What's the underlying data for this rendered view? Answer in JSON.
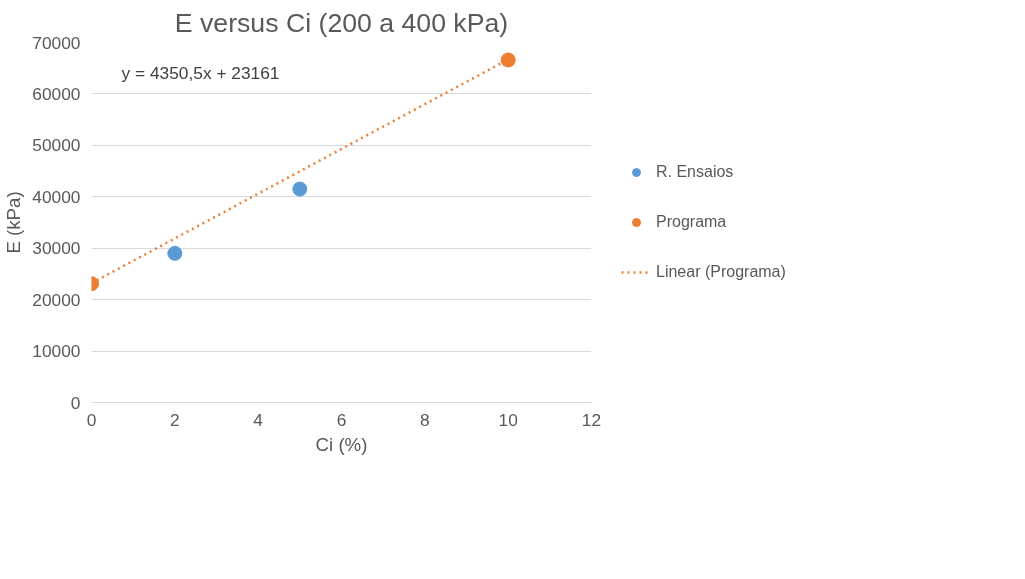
{
  "chart_data": {
    "type": "scatter",
    "title": "E versus Ci (200 a 400 kPa)",
    "xlabel": "Ci (%)",
    "ylabel": "E (kPa)",
    "xlim": [
      0,
      12
    ],
    "xticks": [
      0,
      2,
      4,
      6,
      8,
      10,
      12
    ],
    "ylim": [
      0,
      70000
    ],
    "yticks": [
      0,
      10000,
      20000,
      30000,
      40000,
      50000,
      60000,
      70000
    ],
    "grid": "y",
    "legend": "right",
    "series": [
      {
        "name": "R. Ensaios",
        "color": "#5b9bd5",
        "marker": "circle",
        "x": [
          2,
          5
        ],
        "values": [
          29000,
          41500
        ]
      },
      {
        "name": "Programa",
        "color": "#ed7d31",
        "marker": "circle",
        "x": [
          0,
          10
        ],
        "values": [
          23100,
          66600
        ]
      },
      {
        "name": "Linear (Programa)",
        "type": "line",
        "line_style": "dotted",
        "color": "#ed7d31",
        "x": [
          0,
          10
        ],
        "values": [
          23200,
          66700
        ]
      }
    ],
    "annotations": [
      "y = 4350,5x + 23161"
    ]
  }
}
